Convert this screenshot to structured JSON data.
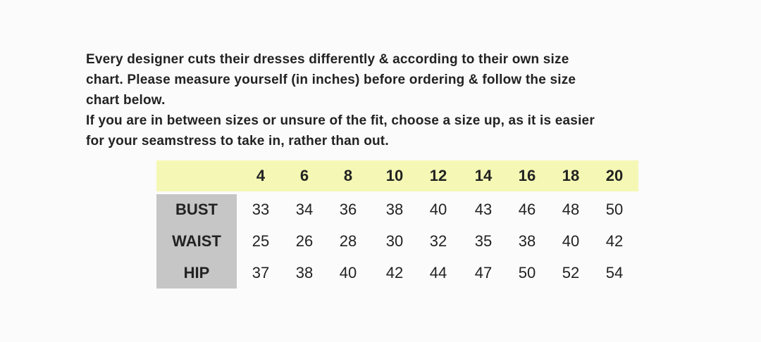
{
  "intro": {
    "lines": [
      "Every designer cuts their dresses differently & according to their own size",
      "chart. Please measure yourself (in inches) before ordering & follow the size",
      "chart below.",
      "If you are in between sizes or unsure of the fit, choose a size up, as it is easier",
      "for your seamstress to take in, rather than out."
    ]
  },
  "table": {
    "sizes": [
      4,
      6,
      8,
      10,
      12,
      14,
      16,
      18,
      20
    ],
    "rows": [
      {
        "label": "BUST",
        "values": [
          33,
          34,
          36,
          38,
          40,
          43,
          46,
          48,
          50
        ]
      },
      {
        "label": "WAIST",
        "values": [
          25,
          26,
          28,
          30,
          32,
          35,
          38,
          40,
          42
        ]
      },
      {
        "label": "HIP",
        "values": [
          37,
          38,
          40,
          42,
          44,
          47,
          50,
          52,
          54
        ]
      }
    ]
  }
}
